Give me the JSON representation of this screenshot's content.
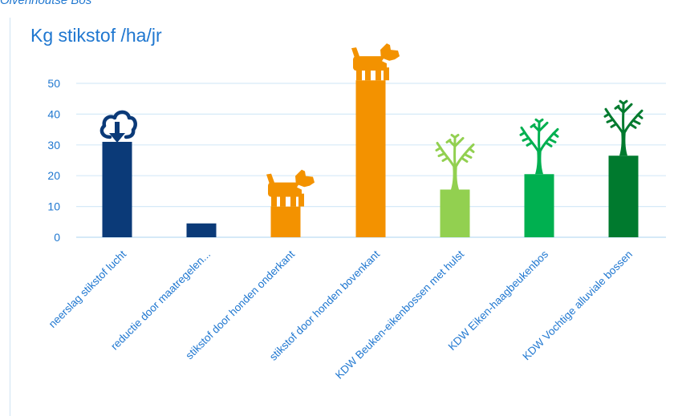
{
  "caption": "Olvenhoutse Bos",
  "chart_data": {
    "type": "bar",
    "title": "Kg stikstof /ha/jr",
    "xlabel": "",
    "ylabel": "",
    "ylim": [
      0,
      55
    ],
    "yticks": [
      0,
      10,
      20,
      30,
      40,
      50
    ],
    "grid": true,
    "categories": [
      "neerslag stikstof lucht",
      "reductie door maatregelen...",
      "stikstof door honden onderkant",
      "stikstof door honden bovenkant",
      "KDW Beuken-eikenbossen met hulst",
      "KDW Eiken-haagbeukenbos",
      "KDW Vochtige alluviale bossen"
    ],
    "values": [
      31,
      4.5,
      10,
      51,
      15.5,
      20.5,
      26.5
    ],
    "colors": [
      "#0b3a78",
      "#0b3a78",
      "#f39200",
      "#f39200",
      "#92d050",
      "#00b050",
      "#007a2e"
    ],
    "icons": [
      "cloud-download-icon",
      "",
      "dog-icon",
      "dog-icon",
      "tree-icon",
      "tree-icon",
      "tree-icon"
    ],
    "axis_color": "#1f77d0",
    "grid_color": "#d6eaf8"
  }
}
